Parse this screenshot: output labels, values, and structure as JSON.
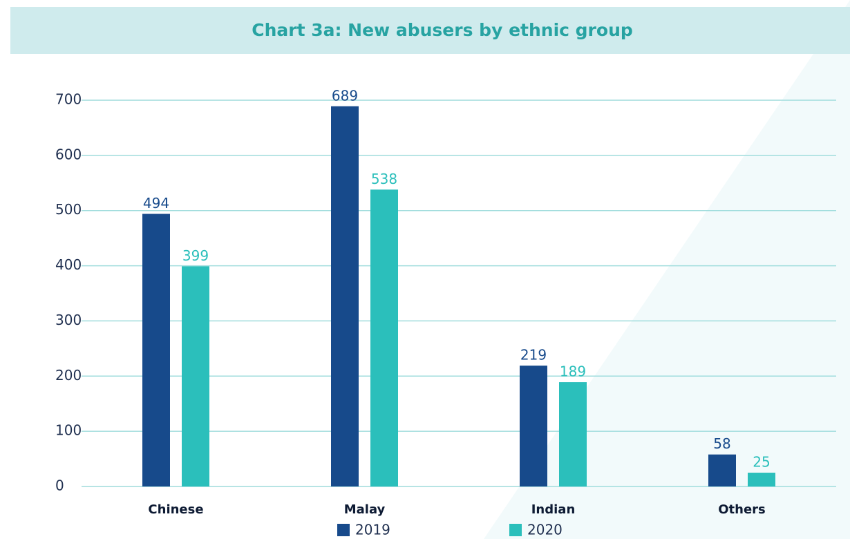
{
  "chart_data": {
    "type": "bar",
    "title": "Chart 3a: New abusers by ethnic group",
    "categories": [
      "Chinese",
      "Malay",
      "Indian",
      "Others"
    ],
    "series": [
      {
        "name": "2019",
        "color": "#174a8b",
        "values": [
          494,
          689,
          219,
          58
        ]
      },
      {
        "name": "2020",
        "color": "#2bbfbb",
        "values": [
          399,
          538,
          189,
          25
        ]
      }
    ],
    "ylim": [
      0,
      700
    ],
    "yticks": [
      0,
      100,
      200,
      300,
      400,
      500,
      600,
      700
    ],
    "grid": true,
    "legend": "bottom"
  }
}
